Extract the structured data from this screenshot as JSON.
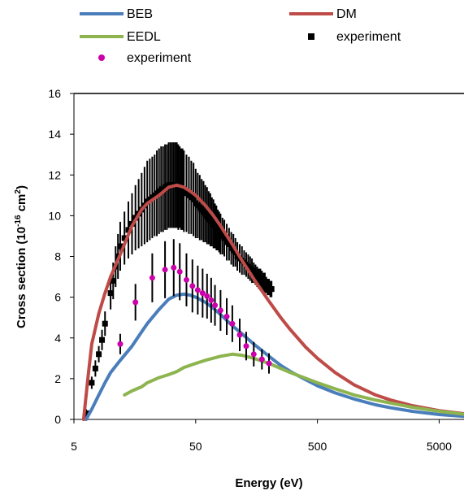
{
  "chart_data": {
    "type": "line",
    "x_scale": "log",
    "xlim": [
      5,
      8000
    ],
    "ylim": [
      0,
      16
    ],
    "grid": false,
    "legend_position": "top",
    "xlabel": "Energy (eV)",
    "ylabel_parts": {
      "main": "Cross section (10",
      "sup1": "-16",
      "mid": " cm",
      "sup2": "2",
      "end": ")"
    },
    "x_ticks": [
      {
        "value": 5,
        "label": "5"
      },
      {
        "value": 50,
        "label": "50"
      },
      {
        "value": 500,
        "label": "500"
      },
      {
        "value": 5000,
        "label": "5000"
      }
    ],
    "y_ticks": [
      0,
      2,
      4,
      6,
      8,
      10,
      12,
      14,
      16
    ],
    "series": [
      {
        "name": "BEB",
        "kind": "line",
        "color": "#4a7ebb",
        "x": [
          6.3,
          7,
          8,
          9,
          10,
          12,
          15,
          18,
          20,
          25,
          30,
          35,
          40,
          45,
          50,
          60,
          70,
          80,
          100,
          120,
          150,
          200,
          250,
          300,
          400,
          500,
          700,
          1000,
          1500,
          2000,
          3000,
          5000,
          8000
        ],
        "y": [
          0,
          0.5,
          1.2,
          1.8,
          2.3,
          2.9,
          3.6,
          4.3,
          4.7,
          5.4,
          5.9,
          6.1,
          6.15,
          6.1,
          6.0,
          5.75,
          5.45,
          5.15,
          4.6,
          4.2,
          3.7,
          3.1,
          2.65,
          2.35,
          1.95,
          1.65,
          1.3,
          1.0,
          0.72,
          0.57,
          0.4,
          0.24,
          0.15
        ]
      },
      {
        "name": "DM",
        "kind": "line",
        "color": "#be4b48",
        "x": [
          6,
          6.5,
          7,
          8,
          9,
          10,
          12,
          15,
          18,
          20,
          25,
          30,
          35,
          40,
          45,
          50,
          60,
          70,
          80,
          100,
          120,
          150,
          200,
          250,
          300,
          400,
          500,
          700,
          1000,
          1500,
          2000,
          3000,
          5000,
          8000
        ],
        "y": [
          0,
          2,
          3.7,
          5.2,
          6.2,
          7.0,
          8.1,
          9.5,
          10.3,
          10.6,
          11.0,
          11.4,
          11.5,
          11.4,
          11.2,
          11.0,
          10.5,
          10.0,
          9.5,
          8.6,
          7.8,
          6.9,
          5.8,
          5.0,
          4.4,
          3.55,
          3.0,
          2.3,
          1.7,
          1.2,
          0.95,
          0.68,
          0.43,
          0.28
        ]
      },
      {
        "name": "EEDL",
        "kind": "line",
        "color": "#8db44f",
        "x": [
          13,
          15,
          18,
          20,
          25,
          30,
          35,
          40,
          50,
          60,
          80,
          100,
          120,
          150,
          200,
          300,
          500,
          700,
          1000,
          1500,
          2000,
          3000,
          5000,
          8000
        ],
        "y": [
          1.2,
          1.4,
          1.6,
          1.8,
          2.05,
          2.2,
          2.35,
          2.55,
          2.75,
          2.9,
          3.1,
          3.2,
          3.15,
          3.0,
          2.75,
          2.3,
          1.8,
          1.5,
          1.2,
          0.95,
          0.8,
          0.6,
          0.4,
          0.25
        ]
      },
      {
        "name": "experiment",
        "kind": "points",
        "marker": "square",
        "color": "#000000",
        "x": [
          6.3,
          7,
          7.5,
          8,
          8.5,
          9,
          10,
          10.5,
          11,
          11.5,
          12,
          13,
          14,
          15,
          16,
          17,
          18,
          19,
          20,
          21,
          22,
          23,
          24,
          25,
          26,
          27,
          28,
          29,
          30,
          31,
          32,
          33,
          34,
          35,
          36,
          37,
          38,
          39,
          40,
          42,
          44,
          46,
          48,
          50,
          52,
          54,
          56,
          58,
          60,
          62,
          64,
          66,
          68,
          70,
          72,
          74,
          76,
          78,
          80,
          83,
          86,
          90,
          94,
          98,
          102,
          106,
          110,
          115,
          120,
          125,
          130,
          135,
          140,
          145,
          150,
          155,
          160,
          165,
          170,
          175,
          180,
          185,
          190,
          195,
          200,
          205,
          210
        ],
        "y": [
          0.3,
          1.8,
          2.5,
          3.2,
          3.9,
          4.7,
          6.2,
          6.8,
          7.5,
          8.0,
          8.5,
          8.9,
          9.3,
          9.6,
          9.9,
          10.1,
          10.3,
          10.5,
          10.7,
          10.8,
          10.9,
          11.0,
          11.1,
          11.2,
          11.3,
          11.3,
          11.4,
          11.4,
          11.5,
          11.5,
          11.5,
          11.5,
          11.5,
          11.5,
          11.4,
          11.4,
          11.3,
          11.3,
          11.2,
          11.1,
          11.0,
          10.9,
          10.8,
          10.6,
          10.5,
          10.4,
          10.3,
          10.2,
          10.1,
          10.0,
          9.9,
          9.8,
          9.7,
          9.6,
          9.5,
          9.4,
          9.3,
          9.2,
          9.1,
          9.0,
          8.9,
          8.7,
          8.6,
          8.4,
          8.3,
          8.2,
          8.0,
          7.9,
          7.8,
          7.7,
          7.6,
          7.5,
          7.4,
          7.3,
          7.2,
          7.1,
          7.0,
          6.9,
          6.9,
          6.8,
          6.7,
          6.7,
          6.6,
          6.5,
          6.5,
          6.4,
          6.4
        ],
        "err": [
          0.2,
          0.3,
          0.4,
          0.4,
          0.5,
          0.6,
          0.8,
          0.9,
          1.0,
          1.1,
          1.2,
          1.3,
          1.4,
          1.5,
          1.6,
          1.7,
          1.8,
          1.9,
          2.0,
          2.0,
          2.0,
          2.0,
          2.1,
          2.1,
          2.1,
          2.1,
          2.1,
          2.1,
          2.1,
          2.1,
          2.1,
          2.1,
          2.1,
          2.1,
          2.1,
          2.0,
          2.0,
          2.0,
          2.0,
          1.9,
          1.9,
          1.8,
          1.8,
          1.7,
          1.6,
          1.6,
          1.5,
          1.5,
          1.4,
          1.4,
          1.3,
          1.3,
          1.2,
          1.2,
          1.1,
          1.1,
          1.0,
          1.0,
          1.0,
          0.9,
          0.9,
          0.9,
          0.8,
          0.8,
          0.8,
          0.7,
          0.7,
          0.7,
          0.7,
          0.6,
          0.6,
          0.6,
          0.6,
          0.6,
          0.5,
          0.5,
          0.5,
          0.5,
          0.5,
          0.5,
          0.5,
          0.5,
          0.4,
          0.4,
          0.4,
          0.4,
          0.4
        ]
      },
      {
        "name": "experiment",
        "kind": "points",
        "marker": "circle",
        "color": "#cc00aa",
        "x": [
          12,
          16,
          22,
          28,
          33,
          37,
          42,
          47,
          52,
          57,
          62,
          67,
          72,
          80,
          90,
          100,
          115,
          130,
          150,
          175,
          200
        ],
        "y": [
          3.7,
          5.75,
          6.95,
          7.35,
          7.45,
          7.25,
          6.85,
          6.55,
          6.35,
          6.2,
          6.05,
          5.85,
          5.6,
          5.35,
          5.05,
          4.7,
          4.15,
          3.6,
          3.2,
          2.95,
          2.75
        ],
        "err": [
          0.5,
          0.9,
          1.2,
          1.4,
          1.4,
          1.4,
          1.3,
          1.3,
          1.2,
          1.2,
          1.1,
          1.1,
          1.0,
          1.0,
          0.9,
          0.9,
          0.8,
          0.7,
          0.6,
          0.5,
          0.5
        ]
      }
    ]
  },
  "legend": [
    {
      "label": "BEB",
      "marker": "line",
      "color": "#4a7ebb"
    },
    {
      "label": "DM",
      "marker": "line",
      "color": "#be4b48"
    },
    {
      "label": "EEDL",
      "marker": "line",
      "color": "#8db44f"
    },
    {
      "label": "experiment",
      "marker": "square",
      "color": "#000000"
    },
    {
      "label": "experiment",
      "marker": "circle",
      "color": "#cc00aa"
    }
  ]
}
